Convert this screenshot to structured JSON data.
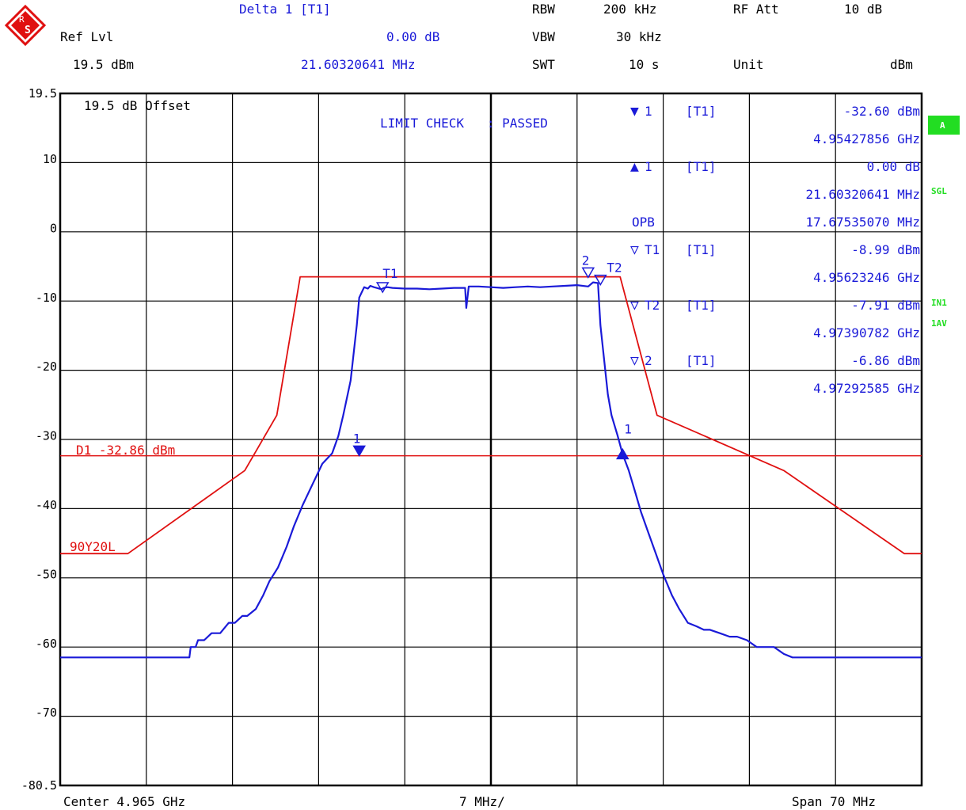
{
  "header": {
    "delta_label": "Delta 1 [T1]",
    "rbw_label": "RBW",
    "rbw_value": "200 kHz",
    "rfatt_label": "RF Att",
    "rfatt_value": "10 dB",
    "reflvl_label": "Ref Lvl",
    "delta_value": "0.00 dB",
    "vbw_label": "VBW",
    "vbw_value": "30 kHz",
    "reflvl_value": "19.5 dBm",
    "delta_freq": "21.60320641 MHz",
    "swt_label": "SWT",
    "swt_value": "10 s",
    "unit_label": "Unit",
    "unit_value": "dBm"
  },
  "plot": {
    "offset_label": "19.5 dB Offset",
    "limit_check": "LIMIT CHECK   : PASSED",
    "d1_label": "D1 -32.86 dBm",
    "limit_name": "90Y20L",
    "t1_label": "T1",
    "t2_label": "T2",
    "m2_label": "2",
    "m1_label": "1",
    "d1_marker_label": "1",
    "d2_marker_label": "1"
  },
  "marker_table": [
    {
      "sym": "▼",
      "num": "1",
      "tag": "[T1]",
      "value": "-32.60 dBm",
      "freq": "4.95427856 GHz"
    },
    {
      "sym": "▲",
      "num": "1",
      "tag": "[T1]",
      "value": "0.00 dB",
      "freq": "21.60320641 MHz"
    },
    {
      "sym": "",
      "num": "OPB",
      "tag": "",
      "value": "17.67535070 MHz",
      "freq": ""
    },
    {
      "sym": "▽",
      "num": "T1",
      "tag": "[T1]",
      "value": "-8.99 dBm",
      "freq": "4.95623246 GHz"
    },
    {
      "sym": "▽",
      "num": "T2",
      "tag": "[T1]",
      "value": "-7.91 dBm",
      "freq": "4.97390782 GHz"
    },
    {
      "sym": "▽",
      "num": "2",
      "tag": "[T1]",
      "value": "-6.86 dBm",
      "freq": "4.97292585 GHz"
    }
  ],
  "side_badges": {
    "a": "A",
    "sgl": "SGL",
    "in1": "IN1",
    "av": "1AV"
  },
  "footer": {
    "center": "Center 4.965 GHz",
    "div": "7 MHz/",
    "span": "Span 70 MHz"
  },
  "colors": {
    "trace": "#1a1ad8",
    "limit": "#e01010",
    "badge": "#22dd22",
    "text": "#1a1ad8"
  },
  "chart_data": {
    "type": "line",
    "xlim": [
      4.93,
      5.0
    ],
    "ylim": [
      -80.5,
      19.5
    ],
    "y_tick_labels": [
      "19.5",
      "10",
      "0",
      "-10",
      "-20",
      "-30",
      "-40",
      "-50",
      "-60",
      "-70",
      "-80.5"
    ],
    "y_tick_values": [
      19.5,
      10,
      0,
      -10,
      -20,
      -30,
      -40,
      -50,
      -60,
      -70,
      -80.5
    ],
    "grid": true,
    "display_line_d1": -32.86,
    "series": [
      {
        "name": "",
        "color": "#1a1ad8",
        "x": [
          4.93,
          4.9312,
          4.9324,
          4.9333,
          4.934,
          4.9405,
          4.9406,
          4.9408,
          4.941,
          4.9412,
          4.9417,
          4.9423,
          4.943,
          4.9437,
          4.9442,
          4.9448,
          4.9452,
          4.9459,
          4.9465,
          4.947,
          4.9477,
          4.9484,
          4.949,
          4.9497,
          4.9505,
          4.9513,
          4.9521,
          4.9526,
          4.953,
          4.9536,
          4.9541,
          4.9543,
          4.9547,
          4.955,
          4.9552,
          4.9555,
          4.9557,
          4.9561,
          4.9563,
          4.9566,
          4.957,
          4.958,
          4.959,
          4.96,
          4.961,
          4.962,
          4.9629,
          4.963,
          4.9632,
          4.964,
          4.965,
          4.966,
          4.967,
          4.968,
          4.969,
          4.97,
          4.971,
          4.972,
          4.9729,
          4.9733,
          4.9737,
          4.9739,
          4.9742,
          4.9745,
          4.9748,
          4.9753,
          4.9757,
          4.9762,
          4.9767,
          4.9772,
          4.9778,
          4.9784,
          4.979,
          4.9797,
          4.9803,
          4.981,
          4.9817,
          4.9823,
          4.9828,
          4.9836,
          4.9844,
          4.985,
          4.9858,
          4.9866,
          4.988,
          4.9888,
          4.9895,
          4.9902,
          4.9915,
          4.993,
          5.0
        ],
        "y": [
          -62,
          -62,
          -62,
          -62,
          -62,
          -62,
          -60.5,
          -60.5,
          -60.5,
          -59.5,
          -59.5,
          -58.5,
          -58.5,
          -57,
          -57,
          -56,
          -56,
          -55,
          -53,
          -51,
          -49,
          -46,
          -43,
          -40,
          -37,
          -34,
          -32.5,
          -30,
          -27,
          -22,
          -14,
          -10,
          -8.5,
          -8.7,
          -8.3,
          -8.5,
          -8.6,
          -8.8,
          -8.6,
          -8.5,
          -8.6,
          -8.7,
          -8.7,
          -8.8,
          -8.7,
          -8.6,
          -8.6,
          -11.5,
          -8.4,
          -8.4,
          -8.5,
          -8.6,
          -8.5,
          -8.4,
          -8.5,
          -8.4,
          -8.3,
          -8.2,
          -8.4,
          -7.8,
          -7.9,
          -14,
          -19,
          -24,
          -27,
          -30,
          -32.6,
          -35,
          -38,
          -41,
          -44,
          -47,
          -50,
          -53,
          -55,
          -57,
          -57.5,
          -58,
          -58,
          -58.5,
          -59,
          -59,
          -59.5,
          -60.5,
          -60.5,
          -61.5,
          -62,
          -62,
          -62,
          -62,
          -62
        ]
      },
      {
        "name": "90Y20L",
        "color": "#e01010",
        "x": [
          4.93,
          4.9355,
          4.945,
          4.9476,
          4.9495,
          4.9735,
          4.9755,
          4.9785,
          4.9888,
          4.9986,
          5.0
        ],
        "y": [
          -47,
          -47,
          -35,
          -27,
          -7,
          -7,
          -7,
          -27,
          -35,
          -47,
          -47
        ]
      }
    ],
    "markers": [
      {
        "label": "1",
        "type": "filled-down",
        "x": 4.9543,
        "y": -32.6
      },
      {
        "label": "1",
        "type": "filled-up",
        "x": 4.9757,
        "y": -32.6
      },
      {
        "label": "2",
        "type": "open-down",
        "x": 4.9729,
        "y": -6.86
      },
      {
        "label": "T1",
        "type": "open-down",
        "x": 4.9562,
        "y": -8.99
      },
      {
        "label": "T2",
        "type": "open-down",
        "x": 4.9739,
        "y": -7.91
      }
    ]
  }
}
